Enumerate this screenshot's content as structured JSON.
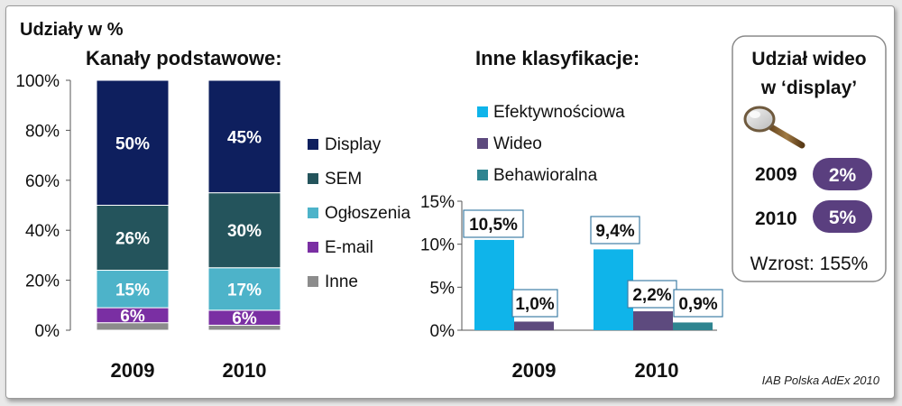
{
  "header": {
    "title": "Udziały w %",
    "left_subtitle": "Kanały podstawowe:",
    "middle_subtitle": "Inne klasyfikacje:"
  },
  "source": "IAB Polska AdEx 2010",
  "colors": {
    "display": "#0e1f5e",
    "sem": "#24545c",
    "ogloszenia": "#4db3c9",
    "email": "#7a2fa3",
    "inne": "#8c8c8c",
    "efektywnosciowa": "#0fb4ea",
    "wideo": "#5d4a7e",
    "behawioralna": "#2e8490",
    "badge": "#5a3f7f"
  },
  "chart_data": [
    {
      "type": "bar",
      "stacked": true,
      "title": "Kanały podstawowe:",
      "categories": [
        "2009",
        "2010"
      ],
      "ylim": [
        0,
        100
      ],
      "yticks": [
        "0%",
        "20%",
        "40%",
        "60%",
        "80%",
        "100%"
      ],
      "series": [
        {
          "name": "Inne",
          "values": [
            3,
            2
          ],
          "labels": [
            "",
            ""
          ]
        },
        {
          "name": "E-mail",
          "values": [
            6,
            6
          ],
          "labels": [
            "6%",
            "6%"
          ]
        },
        {
          "name": "Ogłoszenia",
          "values": [
            15,
            17
          ],
          "labels": [
            "15%",
            "17%"
          ]
        },
        {
          "name": "SEM",
          "values": [
            26,
            30
          ],
          "labels": [
            "26%",
            "30%"
          ]
        },
        {
          "name": "Display",
          "values": [
            50,
            45
          ],
          "labels": [
            "50%",
            "45%"
          ]
        }
      ],
      "legend": [
        "Display",
        "SEM",
        "Ogłoszenia",
        "E-mail",
        "Inne"
      ]
    },
    {
      "type": "bar",
      "title": "Inne klasyfikacje:",
      "categories": [
        "2009",
        "2010"
      ],
      "ylim": [
        0,
        15
      ],
      "yticks": [
        "0%",
        "5%",
        "10%",
        "15%"
      ],
      "series": [
        {
          "name": "Efektywnościowa",
          "values": [
            10.5,
            9.4
          ],
          "labels": [
            "10,5%",
            "9,4%"
          ]
        },
        {
          "name": "Wideo",
          "values": [
            1.0,
            2.2
          ],
          "labels": [
            "1,0%",
            "2,2%"
          ]
        },
        {
          "name": "Behawioralna",
          "values": [
            null,
            0.9
          ],
          "labels": [
            "",
            "0,9%"
          ]
        }
      ],
      "legend": [
        "Efektywnościowa",
        "Wideo",
        "Behawioralna"
      ]
    }
  ],
  "video_box": {
    "title_line1": "Udział wideo",
    "title_line2": "w ‘display’",
    "rows": [
      {
        "year": "2009",
        "value": "2%"
      },
      {
        "year": "2010",
        "value": "5%"
      }
    ],
    "growth": "Wzrost: 155%"
  }
}
